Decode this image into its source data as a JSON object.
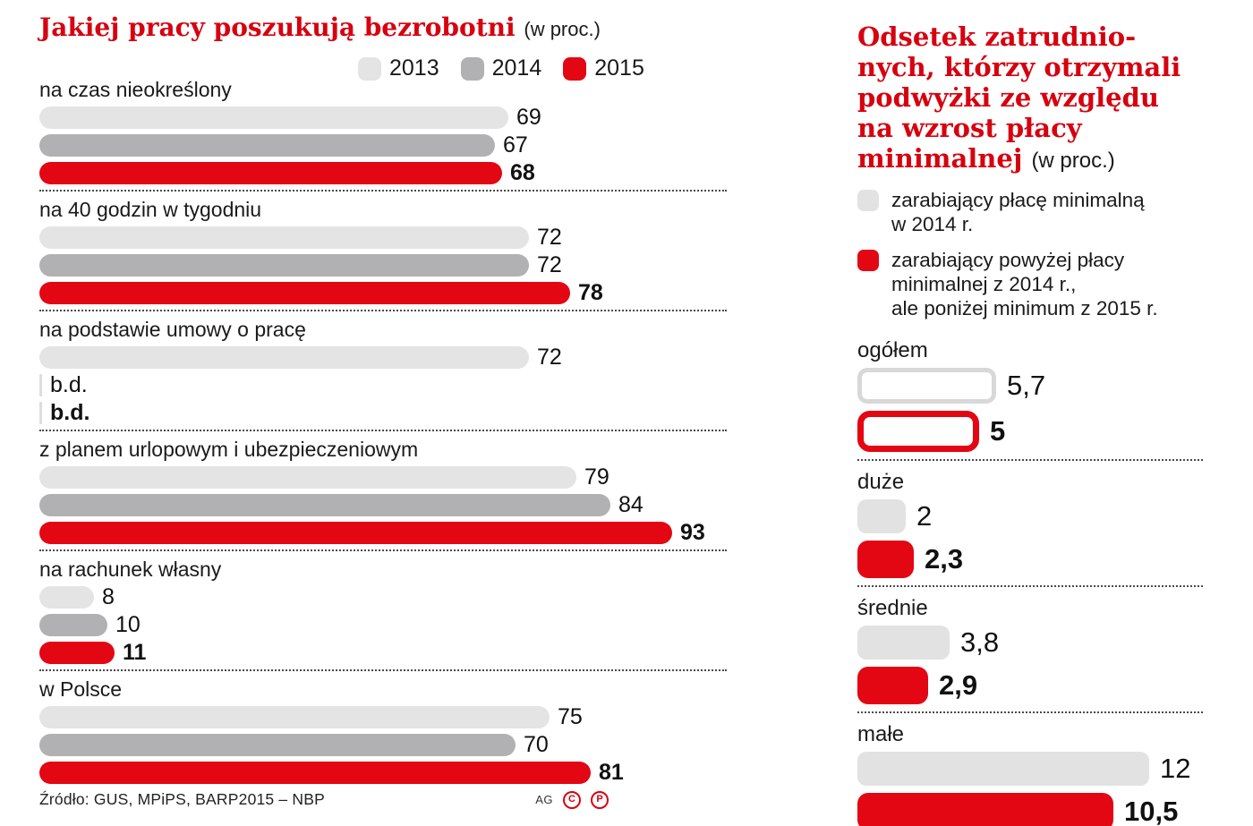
{
  "colors": {
    "bar_red": "#e30613",
    "title_red": "#d6020f",
    "light_gray": "#e4e4e4",
    "mid_gray": "#b1b1b3",
    "text": "#1a1a1a"
  },
  "chart_data": [
    {
      "type": "bar",
      "orientation": "horizontal",
      "title": "Jakiej pracy poszukują bezrobotni",
      "unit_note": "(w proc.)",
      "series": [
        "2013",
        "2014",
        "2015"
      ],
      "legend": [
        {
          "label": "2013",
          "color": "#e4e4e4"
        },
        {
          "label": "2014",
          "color": "#b1b1b3"
        },
        {
          "label": "2015",
          "color": "#e30613"
        }
      ],
      "xlim": [
        0,
        100
      ],
      "groups": [
        {
          "category": "na czas nieokreślony",
          "values": [
            69,
            67,
            68
          ],
          "displays": [
            "69",
            "67",
            "68"
          ]
        },
        {
          "category": "na 40 godzin w tygodniu",
          "values": [
            72,
            72,
            78
          ],
          "displays": [
            "72",
            "72",
            "78"
          ]
        },
        {
          "category": "na podstawie umowy o pracę",
          "values": [
            72,
            null,
            null
          ],
          "displays": [
            "72",
            "b.d.",
            "b.d."
          ]
        },
        {
          "category": "z planem urlopowym i ubezpieczeniowym",
          "values": [
            79,
            84,
            93
          ],
          "displays": [
            "79",
            "84",
            "93"
          ]
        },
        {
          "category": "na rachunek własny",
          "values": [
            8,
            10,
            11
          ],
          "displays": [
            "8",
            "10",
            "11"
          ]
        },
        {
          "category": "w Polsce",
          "values": [
            75,
            70,
            81
          ],
          "displays": [
            "75",
            "70",
            "81"
          ]
        }
      ],
      "source": "Źródło: GUS, MPiPS, BARP2015 – NBP",
      "credits": "AG",
      "badges": [
        "C",
        "P"
      ]
    },
    {
      "type": "bar",
      "orientation": "horizontal",
      "title_lines": [
        "Odsetek zatrudnio-",
        "nych, którzy otrzymali",
        "podwyżki ze względu",
        "na wzrost płacy",
        "minimalnej"
      ],
      "unit_note": "(w proc.)",
      "series": [
        "zarabiający płacę minimalną w 2014 r.",
        "zarabiający powyżej płacy minimalnej z 2014 r., ale poniżej minimum z 2015 r."
      ],
      "legend": [
        {
          "label": "zarabiający płacę minimalną\nw 2014 r.",
          "color": "#e2e2e2"
        },
        {
          "label": "zarabiający powyżej płacy\nminimalnej z 2014 r.,\nale poniżej minimum z 2015 r.",
          "color": "#e30613"
        }
      ],
      "xlim": [
        0,
        13
      ],
      "groups": [
        {
          "category": "ogółem",
          "values": [
            5.7,
            5
          ],
          "displays": [
            "5,7",
            "5"
          ],
          "outlined": true
        },
        {
          "category": "duże",
          "values": [
            2,
            2.3
          ],
          "displays": [
            "2",
            "2,3"
          ],
          "outlined": false
        },
        {
          "category": "średnie",
          "values": [
            3.8,
            2.9
          ],
          "displays": [
            "3,8",
            "2,9"
          ],
          "outlined": false
        },
        {
          "category": "małe",
          "values": [
            12,
            10.5
          ],
          "displays": [
            "12",
            "10,5"
          ],
          "outlined": false
        }
      ]
    }
  ]
}
